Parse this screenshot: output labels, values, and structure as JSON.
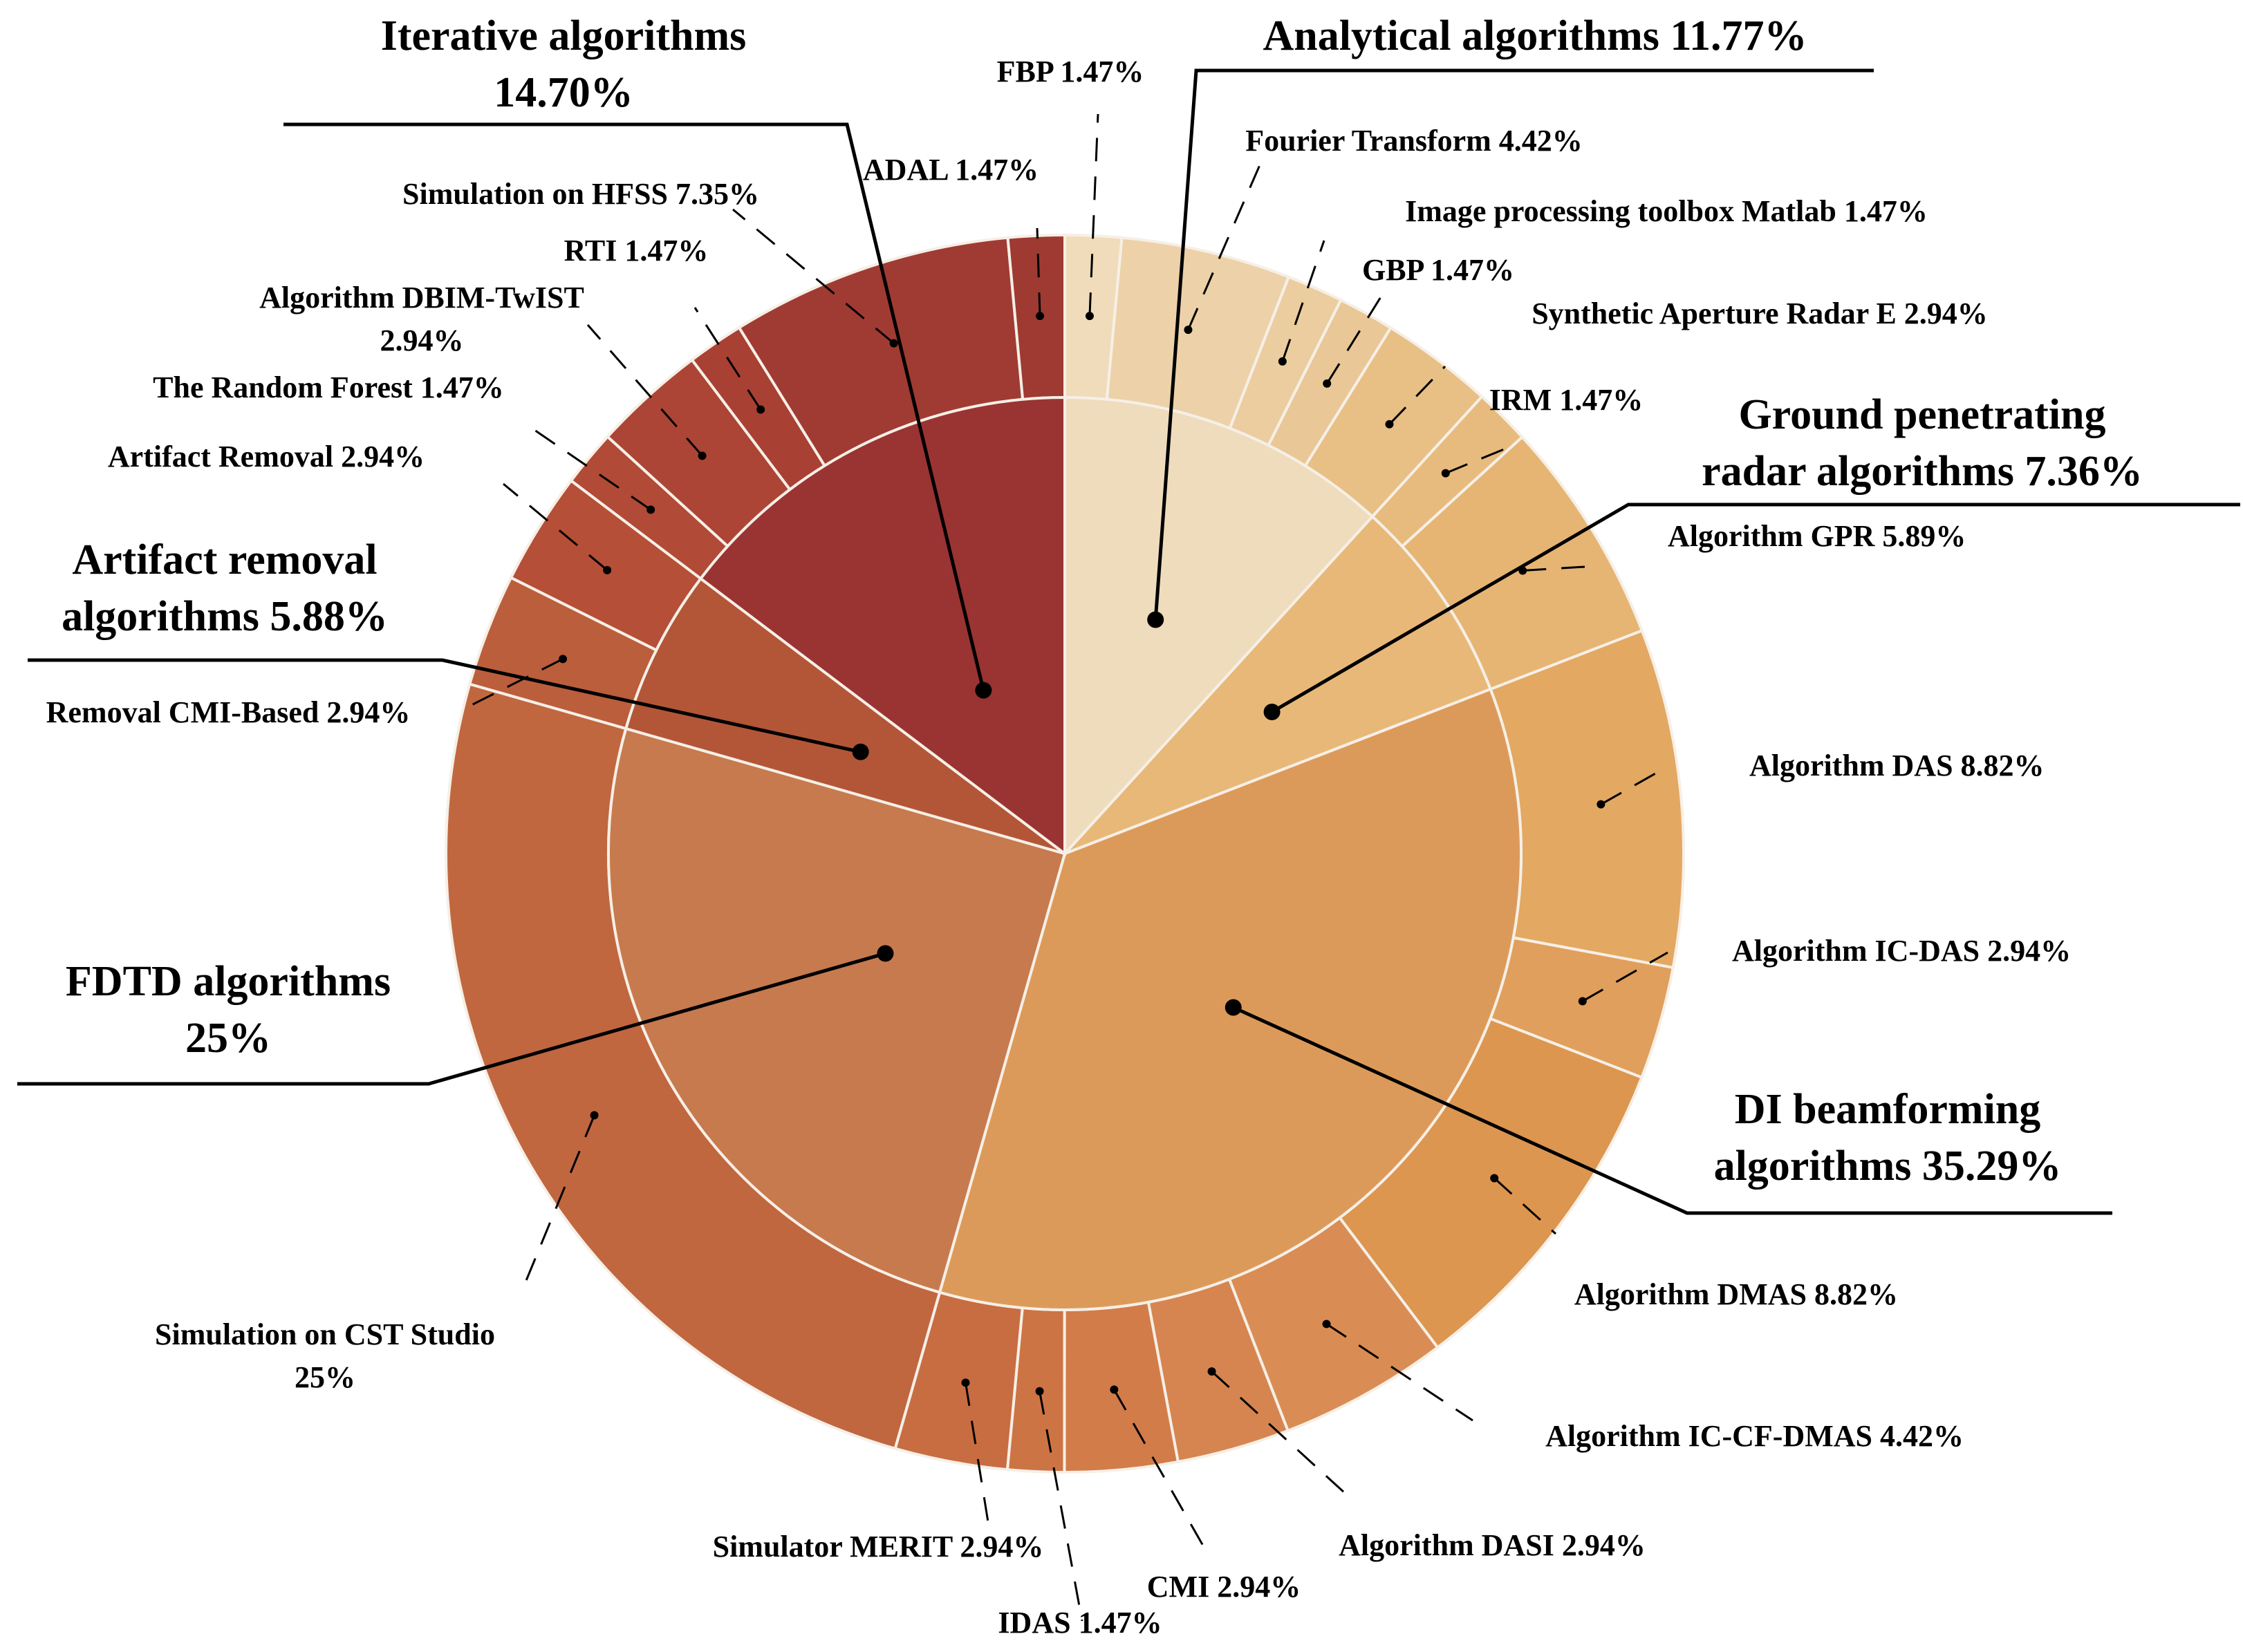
{
  "chart_data": {
    "type": "sunburst",
    "title": "",
    "inner": [
      {
        "name": "Analytical algorithms",
        "value": 11.77,
        "label": [
          "Analytical algorithms 11.77%"
        ],
        "color": "#eedcbd"
      },
      {
        "name": "Ground penetrating radar algorithms",
        "value": 7.36,
        "label": [
          "Ground penetrating",
          "radar algorithms 7.36%"
        ],
        "color": "#e8b878"
      },
      {
        "name": "DI beamforming algorithms",
        "value": 35.29,
        "label": [
          "DI beamforming",
          "algorithms 35.29%"
        ],
        "color": "#dc9a5a"
      },
      {
        "name": "FDTD algorithms",
        "value": 25,
        "label": [
          "FDTD algorithms",
          "25%"
        ],
        "color": "#c77a4e"
      },
      {
        "name": "Artifact removal algorithms",
        "value": 5.88,
        "label": [
          "Artifact removal",
          "algorithms 5.88%"
        ],
        "color": "#b35638"
      },
      {
        "name": "Iterative algorithms",
        "value": 14.7,
        "label": [
          "Iterative algorithms",
          "14.70%"
        ],
        "color": "#9a3432"
      }
    ],
    "outer": [
      {
        "name": "FBP",
        "value": 1.47,
        "label": [
          "FBP 1.47%"
        ],
        "color": "#f0dcba"
      },
      {
        "name": "Fourier Transform",
        "value": 4.42,
        "label": [
          "Fourier Transform 4.42%"
        ],
        "color": "#edd1a8"
      },
      {
        "name": "Image processing toolbox Matlab",
        "value": 1.47,
        "label": [
          "Image processing toolbox Matlab 1.47%"
        ],
        "color": "#ebcda0"
      },
      {
        "name": "GBP",
        "value": 1.47,
        "label": [
          "GBP 1.47%"
        ],
        "color": "#e9c796"
      },
      {
        "name": "Synthetic Aperture Radar E",
        "value": 2.94,
        "label": [
          "Synthetic Aperture Radar E 2.94%"
        ],
        "color": "#e8bf85"
      },
      {
        "name": "IRM",
        "value": 1.47,
        "label": [
          "IRM 1.47%"
        ],
        "color": "#e7bb7d"
      },
      {
        "name": "Algorithm GPR",
        "value": 5.89,
        "label": [
          "Algorithm GPR 5.89%"
        ],
        "color": "#e6b573"
      },
      {
        "name": "Algorithm DAS",
        "value": 8.82,
        "label": [
          "Algorithm DAS 8.82%"
        ],
        "color": "#e3a862"
      },
      {
        "name": "Algorithm IC-DAS",
        "value": 2.94,
        "label": [
          "Algorithm IC-DAS 2.94%"
        ],
        "color": "#e09f5c"
      },
      {
        "name": "Algorithm DMAS",
        "value": 8.82,
        "label": [
          "Algorithm DMAS 8.82%"
        ],
        "color": "#dc964f"
      },
      {
        "name": "Algorithm IC-CF-DMAS",
        "value": 4.42,
        "label": [
          "Algorithm IC-CF-DMAS 4.42%"
        ],
        "color": "#d98d55"
      },
      {
        "name": "Algorithm DASI",
        "value": 2.94,
        "label": [
          "Algorithm DASI 2.94%"
        ],
        "color": "#d68550"
      },
      {
        "name": "CMI",
        "value": 2.94,
        "label": [
          "CMI 2.94%"
        ],
        "color": "#d27c4a"
      },
      {
        "name": "IDAS",
        "value": 1.47,
        "label": [
          "IDAS 1.47%"
        ],
        "color": "#cd7445"
      },
      {
        "name": "Simulator MERIT",
        "value": 2.94,
        "label": [
          "Simulator MERIT 2.94%"
        ],
        "color": "#c86c42"
      },
      {
        "name": "Simulation on CST Studio",
        "value": 25,
        "label": [
          "Simulation on CST Studio",
          "25%"
        ],
        "color": "#c06740"
      },
      {
        "name": "Removal CMI-Based",
        "value": 2.94,
        "label": [
          "Removal CMI-Based 2.94%"
        ],
        "color": "#bb5e3c"
      },
      {
        "name": "Artifact Removal",
        "value": 2.94,
        "label": [
          "Artifact Removal 2.94%"
        ],
        "color": "#b54f37"
      },
      {
        "name": "The Random Forest",
        "value": 1.47,
        "label": [
          "The Random Forest 1.47%"
        ],
        "color": "#b14a36"
      },
      {
        "name": "Algorithm DBIM-TwIST",
        "value": 2.94,
        "label": [
          "Algorithm DBIM-TwIST",
          "2.94%"
        ],
        "color": "#ac4535"
      },
      {
        "name": "RTI",
        "value": 1.47,
        "label": [
          "RTI 1.47%"
        ],
        "color": "#a84034"
      },
      {
        "name": "Simulation on HFSS",
        "value": 7.35,
        "label": [
          "Simulation on HFSS 7.35%"
        ],
        "color": "#a03b33"
      },
      {
        "name": "ADAL",
        "value": 1.47,
        "label": [
          "ADAL 1.47%"
        ],
        "color": "#9f3a32"
      }
    ]
  }
}
